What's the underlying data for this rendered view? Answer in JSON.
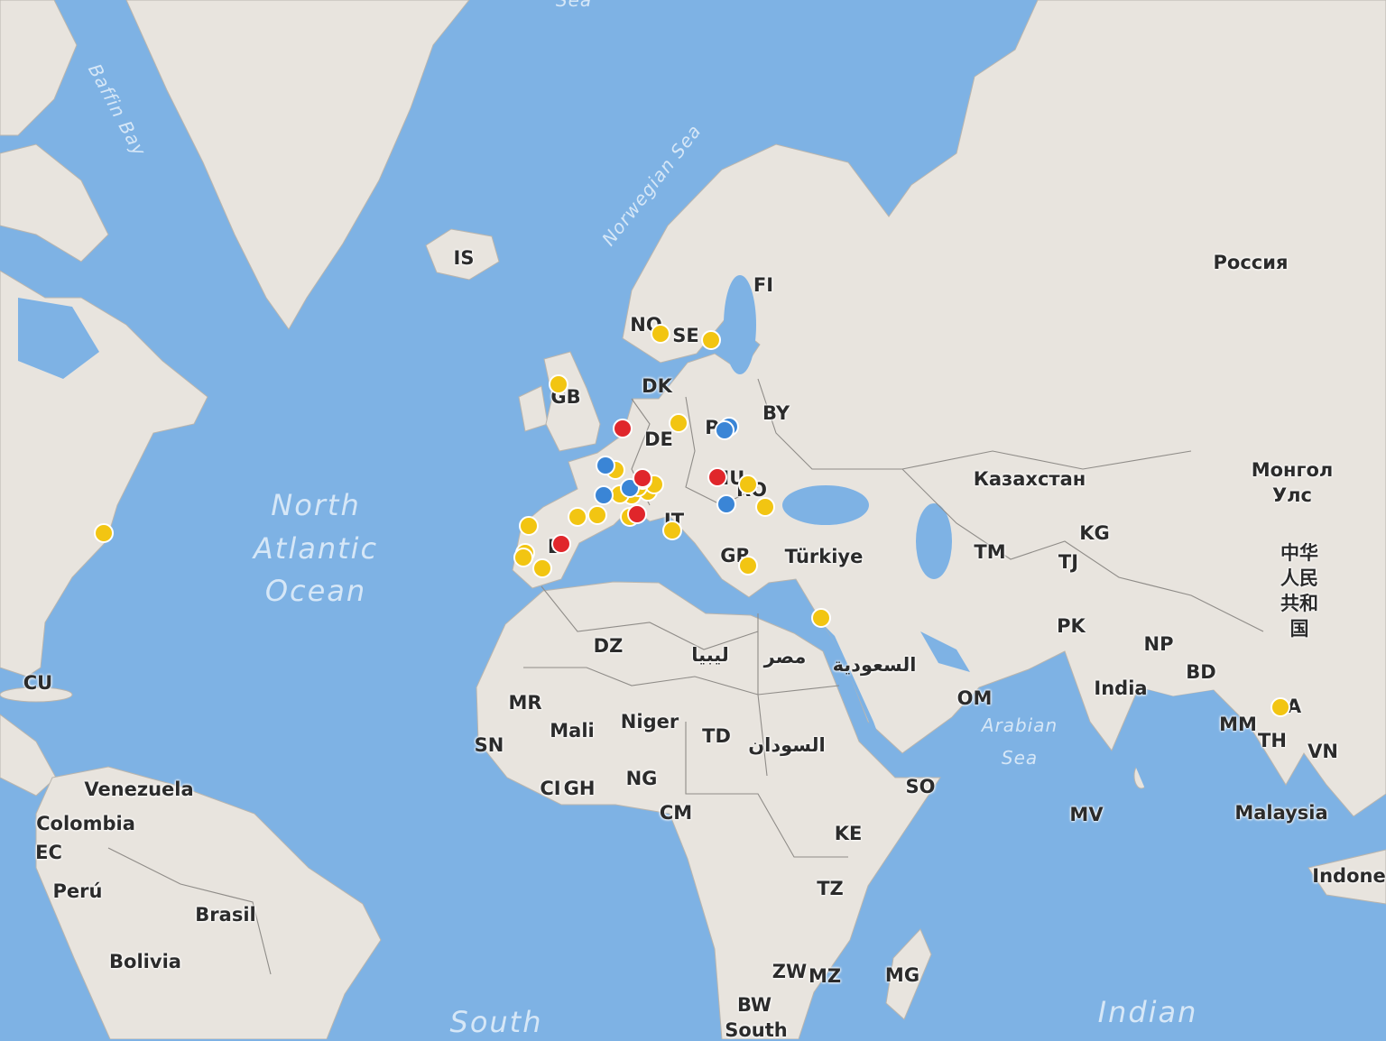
{
  "map": {
    "colors": {
      "ocean": "#7eb2e4",
      "land": "#e8e4de",
      "yellow": "#f2c512",
      "blue": "#3a85d6",
      "red": "#e0262b"
    },
    "ocean_labels": [
      "Sea",
      "Baffin Bay",
      "Norwegian Sea",
      "North",
      "Atlantic",
      "Ocean",
      "Arabian",
      "Sea",
      "South",
      "Indian"
    ],
    "country_labels": [
      "IS",
      "NO",
      "SE",
      "FI",
      "Россия",
      "GB",
      "DK",
      "BY",
      "DE",
      "P",
      "Казахстан",
      "Монгол",
      "Улс",
      "KG",
      "TM",
      "TJ",
      "Türkiye",
      "GR",
      "IT",
      "RO",
      "HU",
      "E",
      "中华",
      "人民",
      "共和",
      "国",
      "PK",
      "NP",
      "BD",
      "India",
      "MM",
      "TH",
      "VN",
      "A",
      "Malaysia",
      "Indone",
      "OM",
      "DZ",
      "ليبيا",
      "مصر",
      "السعودية",
      "MR",
      "Mali",
      "Niger",
      "TD",
      "السودان",
      "SN",
      "CI",
      "GH",
      "NG",
      "CM",
      "SO",
      "MV",
      "KE",
      "TZ",
      "ZW",
      "MZ",
      "MG",
      "BW",
      "South",
      "CU",
      "Venezuela",
      "Colombia",
      "EC",
      "Perú",
      "Brasil",
      "Bolivia"
    ],
    "markers": [
      {
        "color": "yellow",
        "lon": -71.1,
        "lat": 42.4
      },
      {
        "color": "yellow",
        "lon": -4.3,
        "lat": 56.5
      },
      {
        "color": "yellow",
        "lon": 10.7,
        "lat": 60.4
      },
      {
        "color": "yellow",
        "lon": 18.1,
        "lat": 59.9
      },
      {
        "color": "yellow",
        "lon": 13.3,
        "lat": 53.2
      },
      {
        "color": "yellow",
        "lon": 4.0,
        "lat": 48.9
      },
      {
        "color": "yellow",
        "lon": 6.4,
        "lat": 46.4
      },
      {
        "color": "yellow",
        "lon": 8.8,
        "lat": 46.7
      },
      {
        "color": "yellow",
        "lon": 9.7,
        "lat": 47.5
      },
      {
        "color": "yellow",
        "lon": 4.7,
        "lat": 46.5
      },
      {
        "color": "yellow",
        "lon": 7.4,
        "lat": 47.2
      },
      {
        "color": "yellow",
        "lon": 8.0,
        "lat": 47.9
      },
      {
        "color": "yellow",
        "lon": -1.5,
        "lat": 44.1
      },
      {
        "color": "yellow",
        "lon": 1.4,
        "lat": 44.3
      },
      {
        "color": "yellow",
        "lon": -8.7,
        "lat": 43.2
      },
      {
        "color": "yellow",
        "lon": -9.2,
        "lat": 40.2
      },
      {
        "color": "yellow",
        "lon": -9.5,
        "lat": 39.7
      },
      {
        "color": "yellow",
        "lon": -6.7,
        "lat": 38.5
      },
      {
        "color": "yellow",
        "lon": 6.2,
        "lat": 44.1
      },
      {
        "color": "yellow",
        "lon": 12.4,
        "lat": 42.7
      },
      {
        "color": "yellow",
        "lon": 23.5,
        "lat": 47.5
      },
      {
        "color": "yellow",
        "lon": 26.1,
        "lat": 45.2
      },
      {
        "color": "yellow",
        "lon": 23.5,
        "lat": 38.8
      },
      {
        "color": "yellow",
        "lon": 34.3,
        "lat": 32.5
      },
      {
        "color": "yellow",
        "lon": 101.7,
        "lat": 20.8
      },
      {
        "color": "blue",
        "lon": 2.6,
        "lat": 49.3
      },
      {
        "color": "blue",
        "lon": 2.3,
        "lat": 46.4
      },
      {
        "color": "blue",
        "lon": 6.2,
        "lat": 47.1
      },
      {
        "color": "blue",
        "lon": 20.7,
        "lat": 52.9
      },
      {
        "color": "blue",
        "lon": 20.1,
        "lat": 52.6
      },
      {
        "color": "blue",
        "lon": 20.4,
        "lat": 45.5
      },
      {
        "color": "red",
        "lon": 5.1,
        "lat": 52.7
      },
      {
        "color": "red",
        "lon": 8.0,
        "lat": 48.1
      },
      {
        "color": "red",
        "lon": 7.2,
        "lat": 44.4
      },
      {
        "color": "red",
        "lon": -3.9,
        "lat": 41.2
      },
      {
        "color": "red",
        "lon": 19.0,
        "lat": 48.2
      }
    ]
  }
}
